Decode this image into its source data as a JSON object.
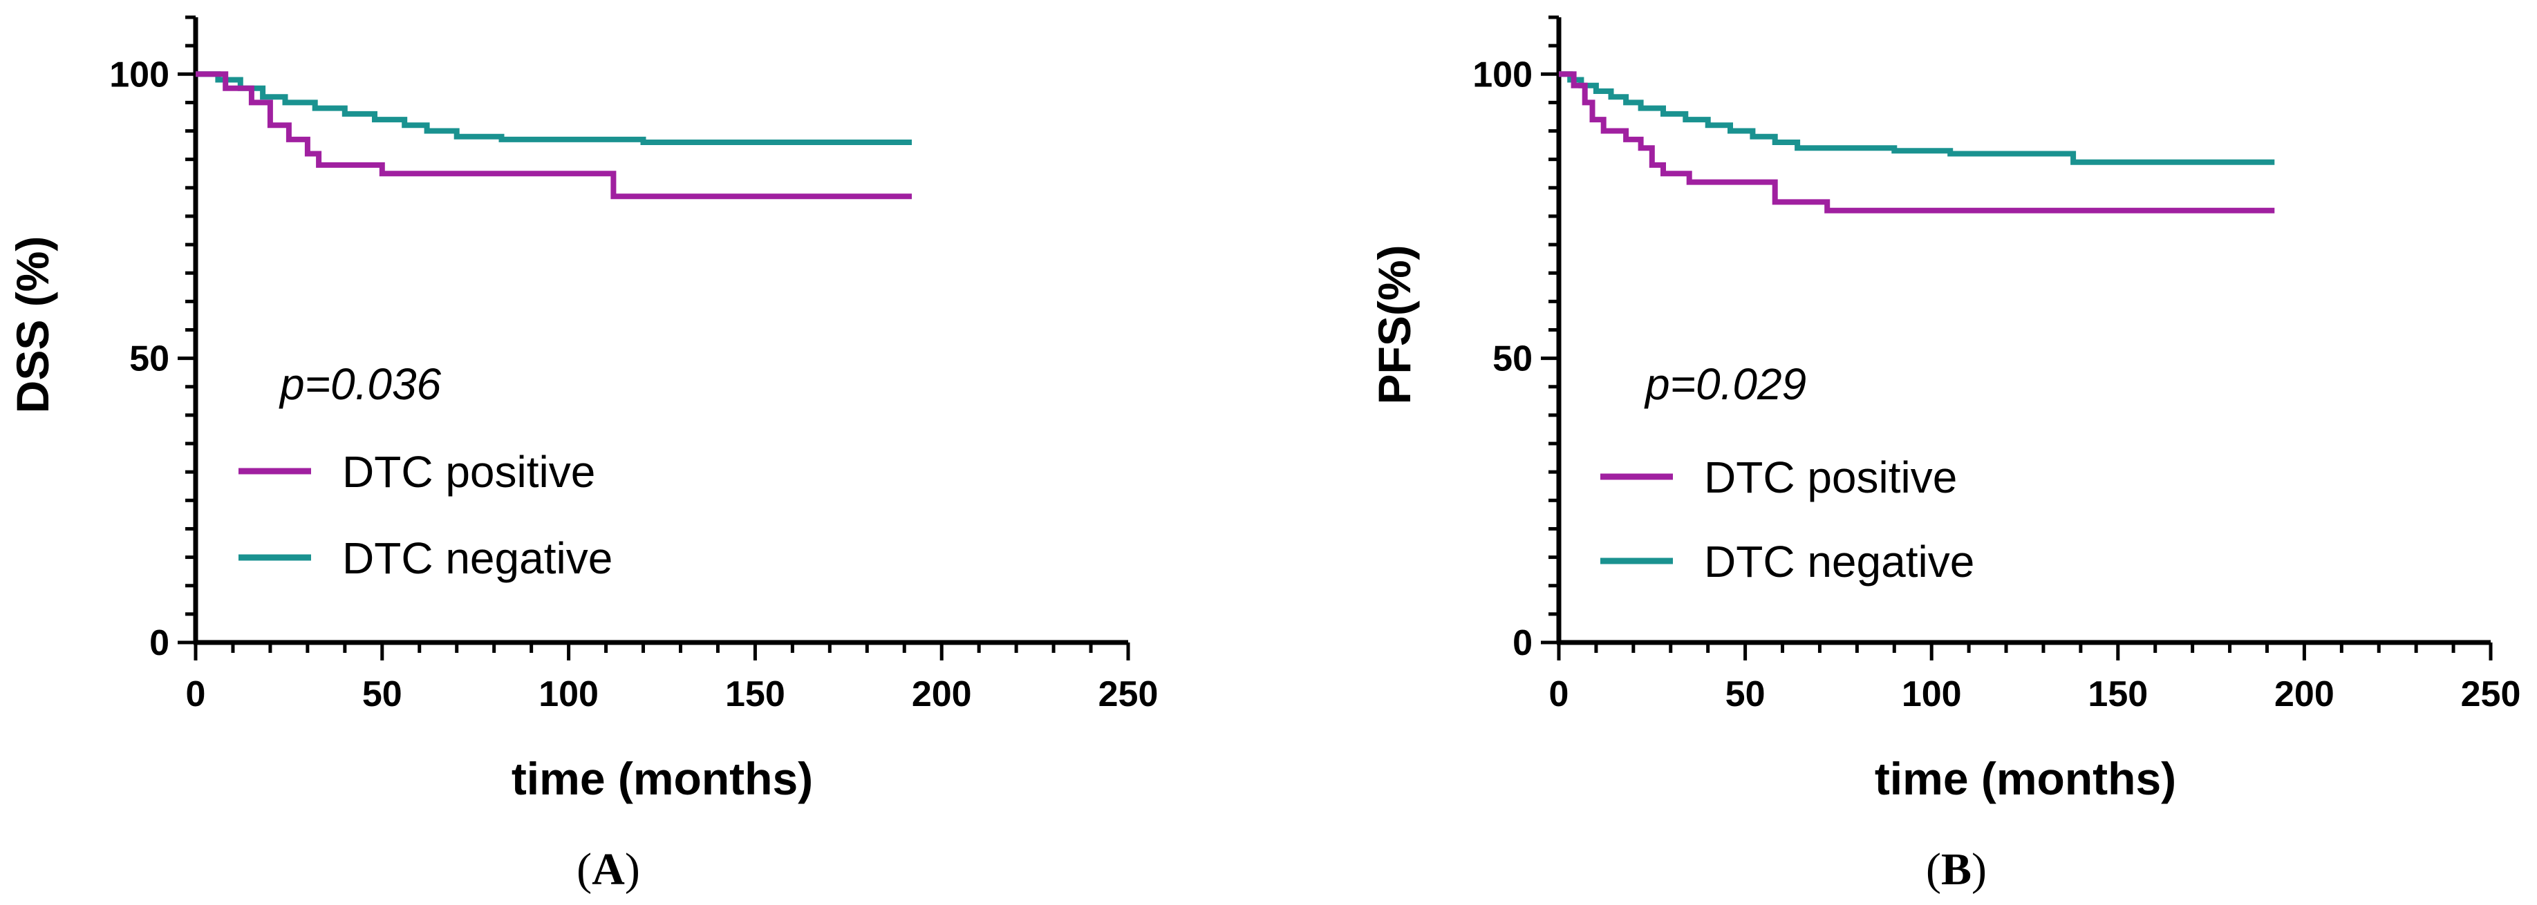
{
  "chart_data": [
    {
      "type": "line",
      "panel_label": "A",
      "xlabel": "time (months)",
      "ylabel": "DSS (%)",
      "xlim": [
        0,
        250
      ],
      "ylim": [
        0,
        110
      ],
      "xticks": [
        "0",
        "50",
        "100",
        "150",
        "200",
        "250"
      ],
      "yticks": [
        "0",
        "50",
        "100"
      ],
      "annotation": "p=0.036",
      "legend_position": "lower-left",
      "series": [
        {
          "name": "DTC positive",
          "color": "#a020a0",
          "points": [
            [
              0,
              100
            ],
            [
              8,
              100
            ],
            [
              8,
              97.5
            ],
            [
              15,
              97.5
            ],
            [
              15,
              95
            ],
            [
              20,
              95
            ],
            [
              20,
              91
            ],
            [
              25,
              91
            ],
            [
              25,
              88.5
            ],
            [
              30,
              88.5
            ],
            [
              30,
              86
            ],
            [
              33,
              86
            ],
            [
              33,
              84
            ],
            [
              50,
              84
            ],
            [
              50,
              82.5
            ],
            [
              112,
              82.5
            ],
            [
              112,
              78.5
            ],
            [
              192,
              78.5
            ]
          ]
        },
        {
          "name": "DTC negative",
          "color": "#1a9290",
          "points": [
            [
              0,
              100
            ],
            [
              6,
              100
            ],
            [
              6,
              99
            ],
            [
              12,
              99
            ],
            [
              12,
              97.5
            ],
            [
              18,
              97.5
            ],
            [
              18,
              96
            ],
            [
              24,
              96
            ],
            [
              24,
              95
            ],
            [
              32,
              95
            ],
            [
              32,
              94
            ],
            [
              40,
              94
            ],
            [
              40,
              93
            ],
            [
              48,
              93
            ],
            [
              48,
              92
            ],
            [
              56,
              92
            ],
            [
              56,
              91
            ],
            [
              62,
              91
            ],
            [
              62,
              90
            ],
            [
              70,
              90
            ],
            [
              70,
              89
            ],
            [
              82,
              89
            ],
            [
              82,
              88.5
            ],
            [
              120,
              88.5
            ],
            [
              120,
              88
            ],
            [
              192,
              88
            ]
          ]
        }
      ]
    },
    {
      "type": "line",
      "panel_label": "B",
      "xlabel": "time (months)",
      "ylabel": "PFS(%)",
      "xlim": [
        0,
        250
      ],
      "ylim": [
        0,
        110
      ],
      "xticks": [
        "0",
        "50",
        "100",
        "150",
        "200",
        "250"
      ],
      "yticks": [
        "0",
        "50",
        "100"
      ],
      "annotation": "p=0.029",
      "legend_position": "lower-left",
      "series": [
        {
          "name": "DTC positive",
          "color": "#a020a0",
          "points": [
            [
              0,
              100
            ],
            [
              4,
              100
            ],
            [
              4,
              98
            ],
            [
              7,
              98
            ],
            [
              7,
              95
            ],
            [
              9,
              95
            ],
            [
              9,
              92
            ],
            [
              12,
              92
            ],
            [
              12,
              90
            ],
            [
              18,
              90
            ],
            [
              18,
              88.5
            ],
            [
              22,
              88.5
            ],
            [
              22,
              87
            ],
            [
              25,
              87
            ],
            [
              25,
              84
            ],
            [
              28,
              84
            ],
            [
              28,
              82.5
            ],
            [
              35,
              82.5
            ],
            [
              35,
              81
            ],
            [
              58,
              81
            ],
            [
              58,
              77.5
            ],
            [
              72,
              77.5
            ],
            [
              72,
              76
            ],
            [
              192,
              76
            ]
          ]
        },
        {
          "name": "DTC negative",
          "color": "#1a9290",
          "points": [
            [
              0,
              100
            ],
            [
              3,
              100
            ],
            [
              3,
              99
            ],
            [
              6,
              99
            ],
            [
              6,
              98
            ],
            [
              10,
              98
            ],
            [
              10,
              97
            ],
            [
              14,
              97
            ],
            [
              14,
              96
            ],
            [
              18,
              96
            ],
            [
              18,
              95
            ],
            [
              22,
              95
            ],
            [
              22,
              94
            ],
            [
              28,
              94
            ],
            [
              28,
              93
            ],
            [
              34,
              93
            ],
            [
              34,
              92
            ],
            [
              40,
              92
            ],
            [
              40,
              91
            ],
            [
              46,
              91
            ],
            [
              46,
              90
            ],
            [
              52,
              90
            ],
            [
              52,
              89
            ],
            [
              58,
              89
            ],
            [
              58,
              88
            ],
            [
              64,
              88
            ],
            [
              64,
              87
            ],
            [
              90,
              87
            ],
            [
              90,
              86.5
            ],
            [
              105,
              86.5
            ],
            [
              105,
              86
            ],
            [
              138,
              86
            ],
            [
              138,
              84.5
            ],
            [
              192,
              84.5
            ]
          ]
        }
      ]
    }
  ]
}
